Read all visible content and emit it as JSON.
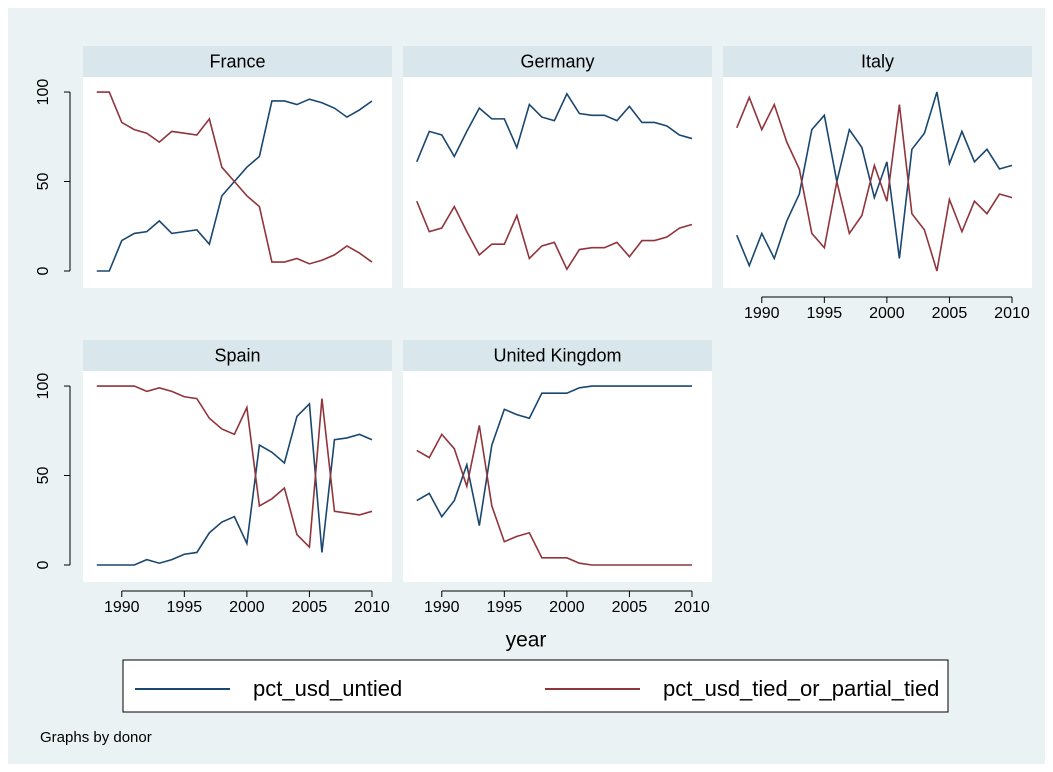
{
  "chart_data": {
    "type": "line",
    "x": [
      1988,
      1989,
      1990,
      1991,
      1992,
      1993,
      1994,
      1995,
      1996,
      1997,
      1998,
      1999,
      2000,
      2001,
      2002,
      2003,
      2004,
      2005,
      2006,
      2007,
      2008,
      2009,
      2010
    ],
    "xlim": [
      1986.9,
      2011.6
    ],
    "xticks": [
      1990,
      1995,
      2000,
      2005,
      2010
    ],
    "ylim": [
      -9.5,
      108.4
    ],
    "yticks": [
      0,
      50,
      100
    ],
    "xlabel": "year",
    "note": "Graphs by donor",
    "series": [
      {
        "name": "pct_usd_untied",
        "color": "#1a476f"
      },
      {
        "name": "pct_usd_tied_or_partial_tied",
        "color": "#90353b"
      }
    ],
    "panels": [
      {
        "title": "France",
        "series": [
          {
            "values": [
              0,
              0,
              17,
              21,
              22,
              28,
              21,
              22,
              23,
              15,
              42,
              50,
              58,
              64,
              95,
              95,
              93,
              96,
              94,
              91,
              86,
              90,
              95
            ]
          },
          {
            "values": [
              100,
              100,
              83,
              79,
              77,
              72,
              78,
              77,
              76,
              85,
              58,
              50,
              42,
              36,
              5,
              5,
              7,
              4,
              6,
              9,
              14,
              10,
              5
            ]
          }
        ]
      },
      {
        "title": "Germany",
        "series": [
          {
            "values": [
              61,
              78,
              76,
              64,
              78,
              91,
              85,
              85,
              69,
              93,
              86,
              84,
              99,
              88,
              87,
              87,
              84,
              92,
              83,
              83,
              81,
              76,
              74
            ]
          },
          {
            "values": [
              39,
              22,
              24,
              36,
              22,
              9,
              15,
              15,
              31,
              7,
              14,
              16,
              1,
              12,
              13,
              13,
              16,
              8,
              17,
              17,
              19,
              24,
              26
            ]
          }
        ]
      },
      {
        "title": "Italy",
        "series": [
          {
            "values": [
              20,
              3,
              21,
              7,
              28,
              43,
              79,
              87,
              50,
              79,
              69,
              41,
              61,
              7,
              68,
              77,
              100,
              60,
              78,
              61,
              68,
              57,
              59
            ]
          },
          {
            "values": [
              80,
              97,
              79,
              93,
              72,
              57,
              21,
              13,
              50,
              21,
              31,
              59,
              39,
              93,
              32,
              23,
              0,
              40,
              22,
              39,
              32,
              43,
              41
            ]
          }
        ]
      },
      {
        "title": "Spain",
        "series": [
          {
            "values": [
              0,
              0,
              0,
              0,
              3,
              1,
              3,
              6,
              7,
              18,
              24,
              27,
              12,
              67,
              63,
              57,
              83,
              90,
              7,
              70,
              71,
              73,
              70
            ]
          },
          {
            "values": [
              100,
              100,
              100,
              100,
              97,
              99,
              97,
              94,
              93,
              82,
              76,
              73,
              88,
              33,
              37,
              43,
              17,
              10,
              93,
              30,
              29,
              28,
              30
            ]
          }
        ]
      },
      {
        "title": "United Kingdom",
        "series": [
          {
            "values": [
              36,
              40,
              27,
              36,
              56,
              22,
              67,
              87,
              84,
              82,
              96,
              96,
              96,
              99,
              100,
              100,
              100,
              100,
              100,
              100,
              100,
              100,
              100
            ]
          },
          {
            "values": [
              64,
              60,
              73,
              65,
              44,
              78,
              33,
              13,
              16,
              18,
              4,
              4,
              4,
              1,
              0,
              0,
              0,
              0,
              0,
              0,
              0,
              0,
              0
            ]
          }
        ]
      }
    ]
  }
}
